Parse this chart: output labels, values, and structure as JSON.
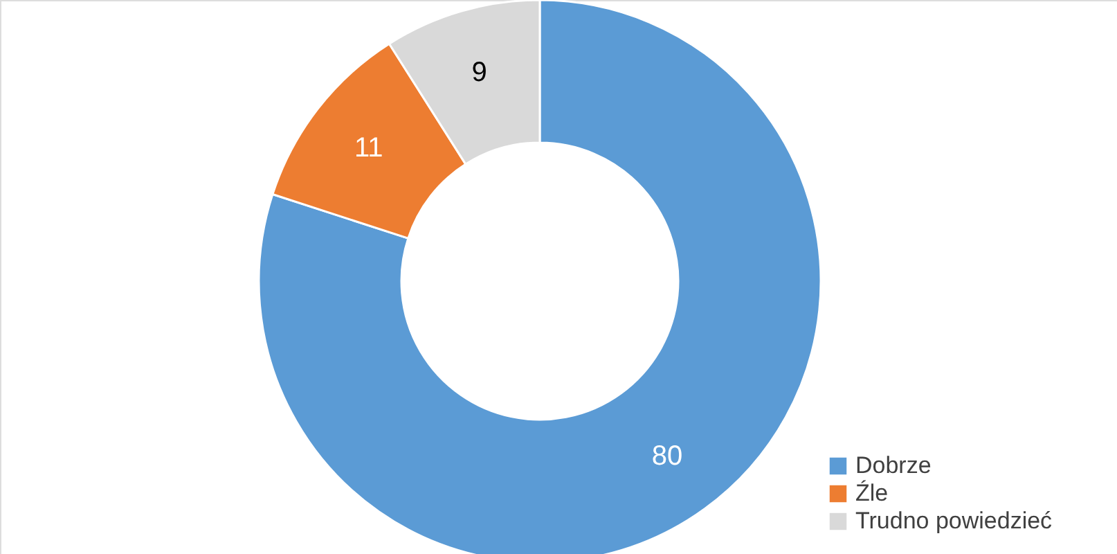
{
  "chart_data": {
    "type": "donut",
    "categories": [
      "Dobrze",
      "Źle",
      "Trudno powiedzieć"
    ],
    "values": [
      80,
      11,
      9
    ],
    "colors": [
      "#5b9bd5",
      "#ed7d31",
      "#d9d9d9"
    ],
    "data_labels": true,
    "legend": "bottom right"
  }
}
